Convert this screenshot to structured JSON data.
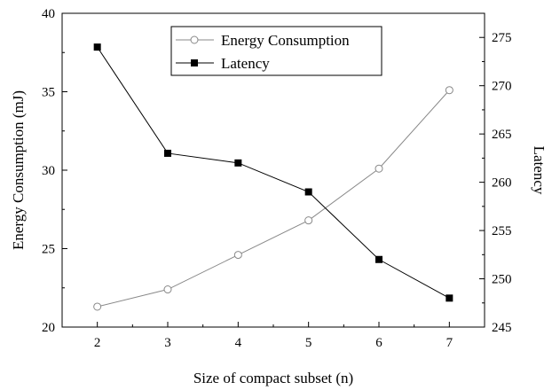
{
  "chart_data": {
    "type": "line",
    "x": [
      2,
      3,
      4,
      5,
      6,
      7
    ],
    "xlabel": "Size of compact subset (n)",
    "xlim": [
      1.5,
      7.5
    ],
    "xticks": [
      2,
      3,
      4,
      5,
      6,
      7
    ],
    "ylabel_left": "Energy Consumption (mJ)",
    "ylim_left": [
      20,
      40
    ],
    "yticks_left": [
      20,
      25,
      30,
      35,
      40
    ],
    "ylabel_right": "Latency",
    "ylim_right": [
      245,
      277.5
    ],
    "yticks_right": [
      245,
      250,
      255,
      260,
      265,
      270,
      275
    ],
    "grid": false,
    "legend_position": "top-center",
    "series": [
      {
        "name": "Energy Consumption",
        "axis": "left",
        "marker": "open-circle",
        "color": "#888888",
        "values": [
          21.3,
          22.4,
          24.6,
          26.8,
          30.1,
          35.1
        ]
      },
      {
        "name": "Latency",
        "axis": "right",
        "marker": "filled-square",
        "color": "#000000",
        "values": [
          274,
          263,
          262,
          259,
          252,
          248
        ]
      }
    ]
  }
}
